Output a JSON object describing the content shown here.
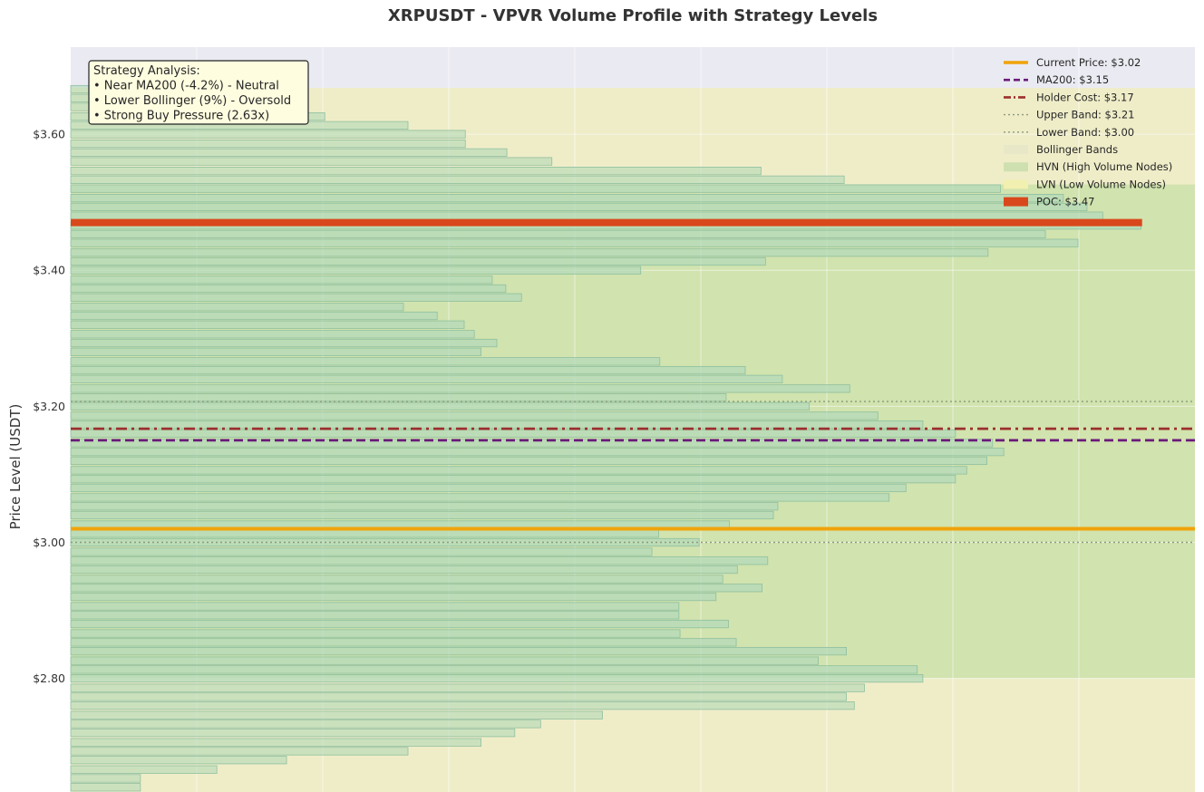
{
  "chart_data": {
    "type": "bar",
    "orientation": "horizontal",
    "title": "XRPUSDT - VPVR Volume Profile with Strategy Levels",
    "ylabel": "Price Level (USDT)",
    "xlabel": "",
    "ylim": [
      2.633,
      3.728
    ],
    "y_ticks": [
      {
        "value": 2.8,
        "label": "$2.80"
      },
      {
        "value": 3.0,
        "label": "$3.00"
      },
      {
        "value": 3.2,
        "label": "$3.20"
      },
      {
        "value": 3.4,
        "label": "$3.40"
      },
      {
        "value": 3.6,
        "label": "$3.60"
      }
    ],
    "x_scale_max": 1.0,
    "grid": true,
    "bar_price_step": 0.01335,
    "volume_profile": [
      {
        "price": 2.64,
        "volume": 0.062,
        "hvn": false
      },
      {
        "price": 2.653,
        "volume": 0.062,
        "hvn": false
      },
      {
        "price": 2.666,
        "volume": 0.13,
        "hvn": false
      },
      {
        "price": 2.68,
        "volume": 0.192,
        "hvn": false
      },
      {
        "price": 2.693,
        "volume": 0.3,
        "hvn": false
      },
      {
        "price": 2.706,
        "volume": 0.365,
        "hvn": false
      },
      {
        "price": 2.72,
        "volume": 0.395,
        "hvn": false
      },
      {
        "price": 2.733,
        "volume": 0.418,
        "hvn": false
      },
      {
        "price": 2.746,
        "volume": 0.473,
        "hvn": false
      },
      {
        "price": 2.76,
        "volume": 0.697,
        "hvn": false
      },
      {
        "price": 2.773,
        "volume": 0.69,
        "hvn": false
      },
      {
        "price": 2.786,
        "volume": 0.706,
        "hvn": false
      },
      {
        "price": 2.8,
        "volume": 0.758,
        "hvn": true
      },
      {
        "price": 2.813,
        "volume": 0.753,
        "hvn": true
      },
      {
        "price": 2.826,
        "volume": 0.665,
        "hvn": true
      },
      {
        "price": 2.84,
        "volume": 0.69,
        "hvn": true
      },
      {
        "price": 2.853,
        "volume": 0.592,
        "hvn": true
      },
      {
        "price": 2.866,
        "volume": 0.542,
        "hvn": true
      },
      {
        "price": 2.88,
        "volume": 0.585,
        "hvn": true
      },
      {
        "price": 2.893,
        "volume": 0.541,
        "hvn": true
      },
      {
        "price": 2.906,
        "volume": 0.541,
        "hvn": true
      },
      {
        "price": 2.92,
        "volume": 0.574,
        "hvn": true
      },
      {
        "price": 2.933,
        "volume": 0.615,
        "hvn": true
      },
      {
        "price": 2.946,
        "volume": 0.58,
        "hvn": true
      },
      {
        "price": 2.96,
        "volume": 0.593,
        "hvn": true
      },
      {
        "price": 2.973,
        "volume": 0.62,
        "hvn": true
      },
      {
        "price": 2.986,
        "volume": 0.517,
        "hvn": true
      },
      {
        "price": 3.0,
        "volume": 0.559,
        "hvn": true
      },
      {
        "price": 3.013,
        "volume": 0.523,
        "hvn": true
      },
      {
        "price": 3.026,
        "volume": 0.586,
        "hvn": true
      },
      {
        "price": 3.04,
        "volume": 0.625,
        "hvn": true
      },
      {
        "price": 3.053,
        "volume": 0.629,
        "hvn": true
      },
      {
        "price": 3.066,
        "volume": 0.728,
        "hvn": true
      },
      {
        "price": 3.08,
        "volume": 0.743,
        "hvn": true
      },
      {
        "price": 3.093,
        "volume": 0.787,
        "hvn": true
      },
      {
        "price": 3.106,
        "volume": 0.797,
        "hvn": true
      },
      {
        "price": 3.12,
        "volume": 0.815,
        "hvn": true
      },
      {
        "price": 3.133,
        "volume": 0.83,
        "hvn": true
      },
      {
        "price": 3.146,
        "volume": 0.82,
        "hvn": true
      },
      {
        "price": 3.16,
        "volume": 0.787,
        "hvn": true
      },
      {
        "price": 3.173,
        "volume": 0.758,
        "hvn": true
      },
      {
        "price": 3.186,
        "volume": 0.718,
        "hvn": true
      },
      {
        "price": 3.2,
        "volume": 0.657,
        "hvn": true
      },
      {
        "price": 3.213,
        "volume": 0.583,
        "hvn": true
      },
      {
        "price": 3.226,
        "volume": 0.693,
        "hvn": true
      },
      {
        "price": 3.24,
        "volume": 0.633,
        "hvn": true
      },
      {
        "price": 3.253,
        "volume": 0.6,
        "hvn": true
      },
      {
        "price": 3.266,
        "volume": 0.524,
        "hvn": true
      },
      {
        "price": 3.28,
        "volume": 0.365,
        "hvn": true
      },
      {
        "price": 3.293,
        "volume": 0.379,
        "hvn": true
      },
      {
        "price": 3.306,
        "volume": 0.359,
        "hvn": true
      },
      {
        "price": 3.32,
        "volume": 0.35,
        "hvn": true
      },
      {
        "price": 3.333,
        "volume": 0.326,
        "hvn": true
      },
      {
        "price": 3.346,
        "volume": 0.296,
        "hvn": true
      },
      {
        "price": 3.36,
        "volume": 0.401,
        "hvn": true
      },
      {
        "price": 3.373,
        "volume": 0.387,
        "hvn": true
      },
      {
        "price": 3.386,
        "volume": 0.375,
        "hvn": true
      },
      {
        "price": 3.4,
        "volume": 0.507,
        "hvn": true
      },
      {
        "price": 3.413,
        "volume": 0.618,
        "hvn": true
      },
      {
        "price": 3.426,
        "volume": 0.816,
        "hvn": true
      },
      {
        "price": 3.44,
        "volume": 0.896,
        "hvn": true
      },
      {
        "price": 3.453,
        "volume": 0.867,
        "hvn": true
      },
      {
        "price": 3.466,
        "volume": 0.952,
        "hvn": true
      },
      {
        "price": 3.48,
        "volume": 0.918,
        "hvn": true
      },
      {
        "price": 3.493,
        "volume": 0.904,
        "hvn": true
      },
      {
        "price": 3.506,
        "volume": 0.883,
        "hvn": true
      },
      {
        "price": 3.52,
        "volume": 0.827,
        "hvn": true
      },
      {
        "price": 3.533,
        "volume": 0.688,
        "hvn": false
      },
      {
        "price": 3.546,
        "volume": 0.614,
        "hvn": false
      },
      {
        "price": 3.56,
        "volume": 0.428,
        "hvn": false
      },
      {
        "price": 3.573,
        "volume": 0.388,
        "hvn": false
      },
      {
        "price": 3.586,
        "volume": 0.351,
        "hvn": false
      },
      {
        "price": 3.6,
        "volume": 0.351,
        "hvn": false
      },
      {
        "price": 3.613,
        "volume": 0.3,
        "hvn": false
      },
      {
        "price": 3.626,
        "volume": 0.226,
        "hvn": false
      },
      {
        "price": 3.64,
        "volume": 0.19,
        "hvn": false
      },
      {
        "price": 3.653,
        "volume": 0.068,
        "hvn": false
      },
      {
        "price": 3.666,
        "volume": 0.016,
        "hvn": false
      }
    ],
    "zones": {
      "bollinger": {
        "low": 2.633,
        "high": 3.668
      },
      "hvn": {
        "low": 2.8,
        "high": 3.526
      }
    },
    "levels": [
      {
        "name": "current_price",
        "value": 3.02,
        "label": "Current Price: $3.02",
        "color": "#f0a30a",
        "style": "solid",
        "x_max": 1.0
      },
      {
        "name": "ma200",
        "value": 3.15,
        "label": "MA200: $3.15",
        "color": "#6a1b7a",
        "style": "dashed",
        "x_max": 1.0
      },
      {
        "name": "holder_cost",
        "value": 3.167,
        "label": "Holder Cost: $3.17",
        "color": "#9c2f2f",
        "style": "dashdot",
        "x_max": 1.0
      },
      {
        "name": "upper_band",
        "value": 3.207,
        "label": "Upper Band: $3.21",
        "color": "#8a9a7a",
        "style": "dotted",
        "x_max": 1.0
      },
      {
        "name": "lower_band",
        "value": 3.0,
        "label": "Lower Band: $3.00",
        "color": "#8a9a7a",
        "style": "dotted",
        "x_max": 1.0
      },
      {
        "name": "poc",
        "value": 3.47,
        "label": "POC: $3.47",
        "color": "#d9481c",
        "style": "thick",
        "x_max": 0.953
      }
    ],
    "legend": {
      "placement": "top-right",
      "entries": [
        {
          "type": "line",
          "ref": "current_price"
        },
        {
          "type": "line",
          "ref": "ma200"
        },
        {
          "type": "line",
          "ref": "holder_cost"
        },
        {
          "type": "line",
          "ref": "upper_band"
        },
        {
          "type": "line",
          "ref": "lower_band"
        },
        {
          "type": "patch",
          "label": "Bollinger Bands",
          "color": "#e8e8c8"
        },
        {
          "type": "patch",
          "label": "HVN (High Volume Nodes)",
          "color": "#cfe0b0"
        },
        {
          "type": "patch",
          "label": "LVN (Low Volume Nodes)",
          "color": "#f2f0b0"
        },
        {
          "type": "patch",
          "label": "POC: $3.47",
          "color": "#d9481c"
        }
      ]
    },
    "annotation": {
      "lines": [
        "Strategy Analysis:",
        "• Near MA200 (-4.2%) - Neutral",
        "• Lower Bollinger (9%) - Oversold",
        "• Strong Buy Pressure (2.63x)"
      ],
      "placement": "top-left"
    },
    "colors": {
      "axes_bg": "#eaeaf2",
      "bollinger_fill": "#efedc8",
      "hvn_fill": "#c9e0a8",
      "bar_fill": "#b3d9b8",
      "bar_edge": "#8fbf9f",
      "annotation_bg": "#fffde0"
    }
  }
}
